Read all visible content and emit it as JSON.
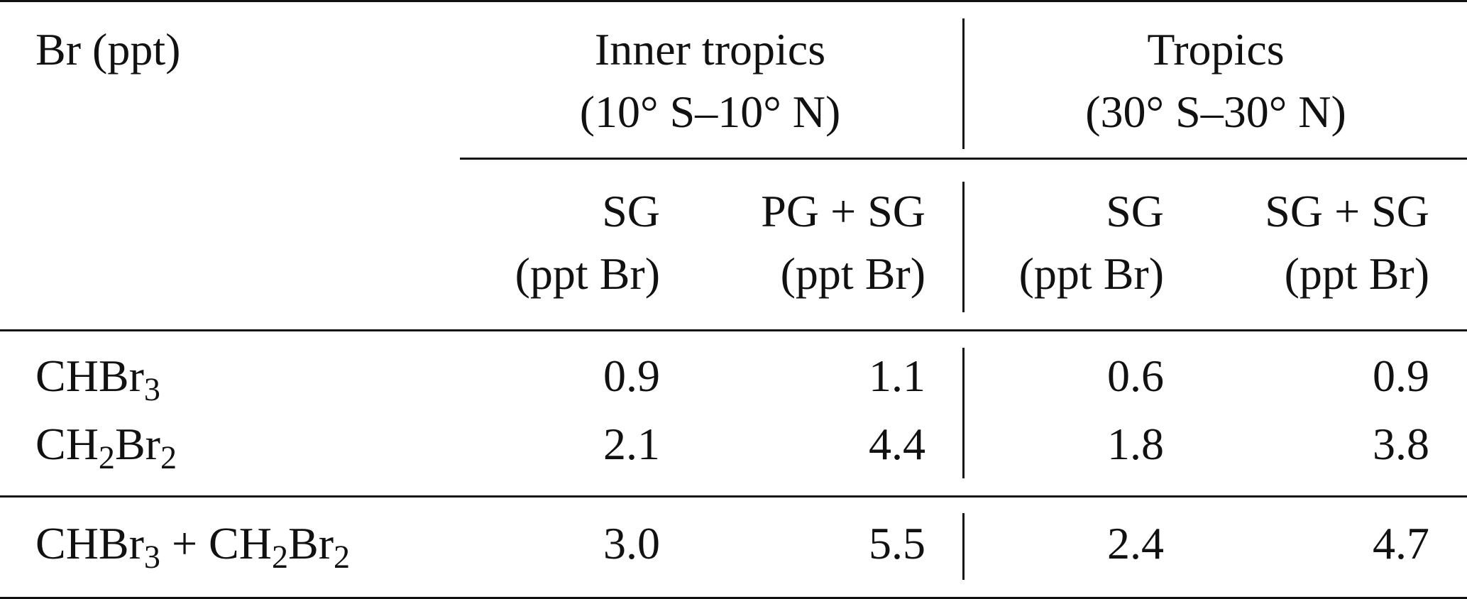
{
  "table": {
    "stub_header": "Br (ppt)",
    "groups": [
      {
        "title_line1": "Inner tropics",
        "title_line2": "(10° S–10° N)",
        "columns": [
          {
            "line1": "SG",
            "line2": "(ppt Br)"
          },
          {
            "line1": "PG + SG",
            "line2": "(ppt Br)"
          }
        ]
      },
      {
        "title_line1": "Tropics",
        "title_line2": "(30° S–30° N)",
        "columns": [
          {
            "line1": "SG",
            "line2": "(ppt Br)"
          },
          {
            "line1": "SG + SG",
            "line2": "(ppt Br)"
          }
        ]
      }
    ],
    "rows": [
      {
        "label_parts": [
          "CHBr",
          "3"
        ],
        "values": [
          "0.9",
          "1.1",
          "0.6",
          "0.9"
        ]
      },
      {
        "label_parts": [
          "CH",
          "2",
          "Br",
          "2"
        ],
        "values": [
          "2.1",
          "4.4",
          "1.8",
          "3.8"
        ]
      }
    ],
    "total_row": {
      "label_parts": [
        "CHBr",
        "3",
        " + CH",
        "2",
        "Br",
        "2"
      ],
      "values": [
        "3.0",
        "5.5",
        "2.4",
        "4.7"
      ]
    }
  }
}
